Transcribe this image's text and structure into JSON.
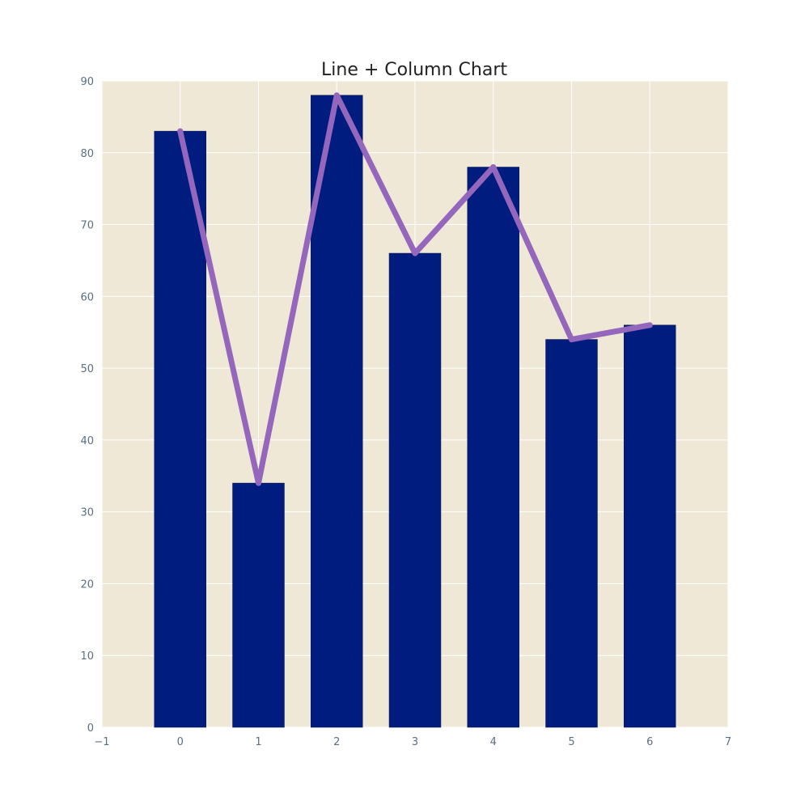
{
  "chart_data": {
    "type": "bar",
    "title": "Line + Column Chart",
    "xlabel": "",
    "ylabel": "",
    "x": [
      0,
      1,
      2,
      3,
      4,
      5,
      6
    ],
    "series": [
      {
        "type": "bar",
        "values": [
          83,
          34,
          88,
          66,
          78,
          54,
          56
        ],
        "color": "#001c7f"
      },
      {
        "type": "line",
        "values": [
          83,
          34,
          88,
          66,
          78,
          54,
          56
        ],
        "color": "#9467bd"
      }
    ],
    "xlim": [
      -1,
      7
    ],
    "ylim": [
      0,
      90
    ],
    "x_ticks": [
      "−1",
      "0",
      "1",
      "2",
      "3",
      "4",
      "5",
      "6",
      "7"
    ],
    "y_ticks": [
      "0",
      "10",
      "20",
      "30",
      "40",
      "50",
      "60",
      "70",
      "80",
      "90"
    ],
    "bar_width": 0.66,
    "grid": true,
    "plot_background": "#efe8d6",
    "grid_color": "#ffffff"
  }
}
